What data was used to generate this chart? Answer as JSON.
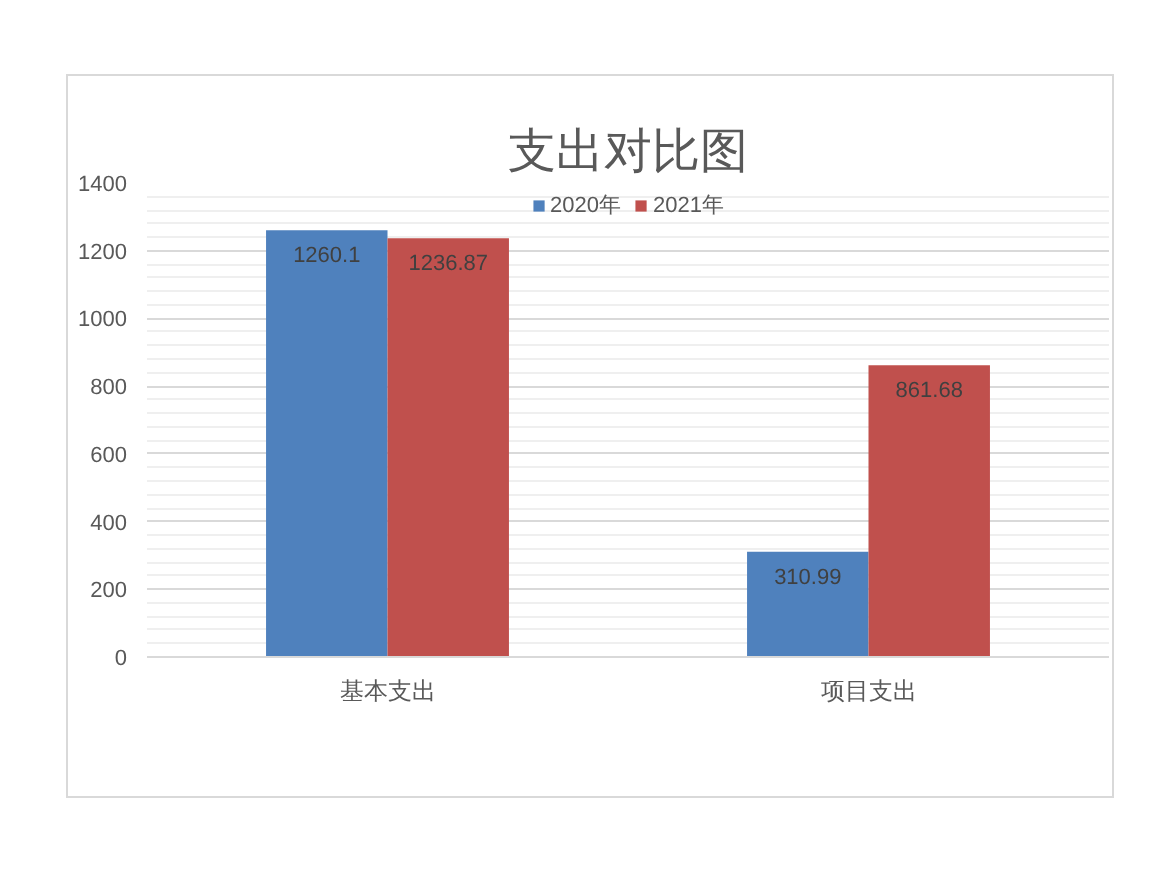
{
  "chart_data": {
    "type": "bar",
    "title": "支出对比图",
    "categories": [
      "基本支出",
      "项目支出"
    ],
    "series": [
      {
        "name": "2020年",
        "color": "#4f81bd",
        "values": [
          1260.1,
          310.99
        ]
      },
      {
        "name": "2021年",
        "color": "#c0504d",
        "values": [
          1236.87,
          861.68
        ]
      }
    ],
    "ylim": [
      0,
      1400
    ],
    "yticks": [
      0,
      200,
      400,
      600,
      800,
      1000,
      1200,
      1400
    ],
    "grid": "y",
    "legend": "top",
    "data_labels": true
  }
}
